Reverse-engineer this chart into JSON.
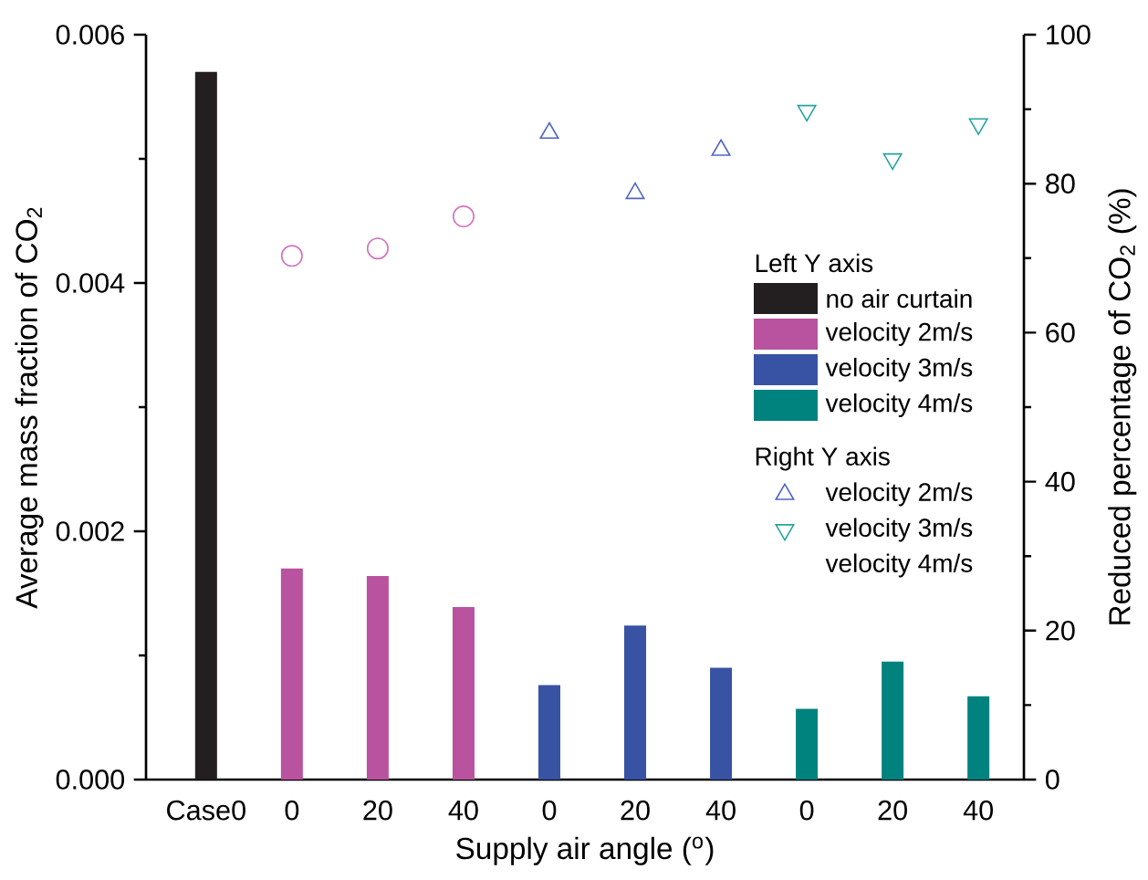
{
  "chart_data": {
    "type": "bar",
    "xlabel": "Supply air angle ($^{o}$)",
    "ylabel": "Average mass fraction of CO$_{2}$",
    "y2label": "Reduced percentage of CO$_{2}$ (%)",
    "categories": [
      "Case0",
      "0",
      "20",
      "40",
      "0",
      "20",
      "40",
      "0",
      "20",
      "40"
    ],
    "series": [
      {
        "name": "no air curtain",
        "color": "#231f20",
        "values": [
          0.0057,
          null,
          null,
          null,
          null,
          null,
          null,
          null,
          null,
          null
        ]
      },
      {
        "name": "velocity 2m/s",
        "color": "#b9529f",
        "values": [
          null,
          0.0017,
          0.00164,
          0.00139,
          null,
          null,
          null,
          null,
          null,
          null
        ]
      },
      {
        "name": "velocity 3m/s",
        "color": "#3853a4",
        "values": [
          null,
          null,
          null,
          null,
          0.00076,
          0.00124,
          0.0009,
          null,
          null,
          null
        ]
      },
      {
        "name": "velocity 4m/s",
        "color": "#00827f",
        "values": [
          null,
          null,
          null,
          null,
          null,
          null,
          null,
          0.00057,
          0.00095,
          0.00067
        ]
      },
      {
        "type": "scatter",
        "axis": "y2",
        "marker": "circle",
        "color": "#d373bd",
        "values": [
          null,
          70.3,
          71.3,
          75.6,
          null,
          null,
          null,
          null,
          null,
          null
        ]
      },
      {
        "name": "velocity 2m/s",
        "type": "scatter",
        "axis": "y2",
        "marker": "triangle",
        "color": "#4f65c2",
        "values": [
          null,
          null,
          null,
          null,
          86.8,
          78.7,
          84.5,
          null,
          null,
          null
        ]
      },
      {
        "name": "velocity 3m/s",
        "type": "scatter",
        "axis": "y2",
        "marker": "triangle_down",
        "color": "#26a3a0",
        "values": [
          null,
          null,
          null,
          null,
          null,
          null,
          null,
          89.8,
          83.3,
          88.0
        ]
      }
    ],
    "ylim": [
      0,
      0.006
    ],
    "yticks": [
      {
        "value": 0,
        "label": "0.000"
      },
      {
        "value": 0.001,
        "label": null
      },
      {
        "value": 0.002,
        "label": "0.002"
      },
      {
        "value": 0.003,
        "label": null
      },
      {
        "value": 0.004,
        "label": "0.004"
      },
      {
        "value": 0.005,
        "label": null
      },
      {
        "value": 0.006,
        "label": "0.006"
      }
    ],
    "y2lim": [
      0,
      100
    ],
    "y2ticks": [
      0,
      {
        "value": 10,
        "label": null
      },
      20,
      {
        "value": 30,
        "label": null
      },
      40,
      {
        "value": 50,
        "label": null
      },
      60,
      {
        "value": 70,
        "label": null
      },
      80,
      {
        "value": 90,
        "label": null
      },
      100
    ],
    "legend": "right",
    "annotations": [
      "Left Y axis",
      "Right Y axis",
      "velocity 4m/s"
    ]
  }
}
